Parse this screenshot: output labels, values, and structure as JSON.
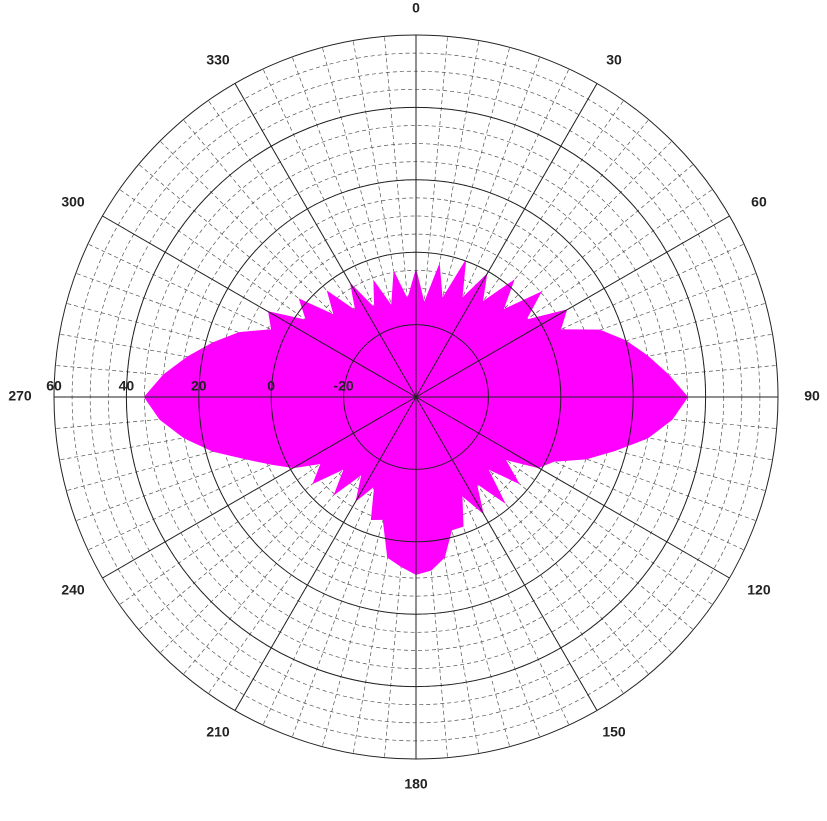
{
  "chart_data": {
    "type": "polar-area",
    "theta": [
      0,
      5,
      10,
      15,
      20,
      25,
      30,
      35,
      40,
      45,
      50,
      55,
      60,
      65,
      70,
      75,
      80,
      85,
      90,
      95,
      100,
      105,
      110,
      115,
      120,
      125,
      130,
      135,
      140,
      145,
      150,
      155,
      160,
      165,
      170,
      175,
      180,
      185,
      190,
      195,
      200,
      205,
      210,
      215,
      220,
      225,
      230,
      235,
      240,
      245,
      250,
      255,
      260,
      265,
      270,
      275,
      280,
      285,
      290,
      295,
      300,
      305,
      310,
      315,
      320,
      325,
      330,
      335,
      340,
      345,
      350,
      355
    ],
    "values": [
      -5,
      -14,
      -3,
      -12,
      0,
      -10,
      -1,
      -8,
      2,
      -6,
      5,
      -3,
      8,
      4,
      14,
      20,
      25,
      30,
      35,
      31,
      25,
      17,
      10,
      2,
      -1,
      -10,
      -3,
      -12,
      -2,
      -11,
      -3,
      -10,
      -2,
      -2,
      5,
      8,
      9,
      7,
      5,
      -5,
      -4,
      -13,
      -7,
      -14,
      -5,
      -12,
      -3,
      -8,
      -1,
      4,
      10,
      18,
      25,
      31,
      35,
      30,
      24,
      18,
      12,
      4,
      7,
      -3,
      2,
      -8,
      -2,
      -11,
      -4,
      -13,
      -6,
      -14,
      -5,
      -13
    ],
    "color": "#ff00ff",
    "rlim": [
      -40,
      60
    ],
    "rticks": [
      -20,
      0,
      20,
      40,
      60
    ],
    "theta_ticks": [
      0,
      30,
      60,
      90,
      120,
      150,
      180,
      210,
      240,
      270,
      300,
      330
    ],
    "theta_direction": "clockwise",
    "theta_zero": "top",
    "grid": true,
    "minor_grid": true
  }
}
